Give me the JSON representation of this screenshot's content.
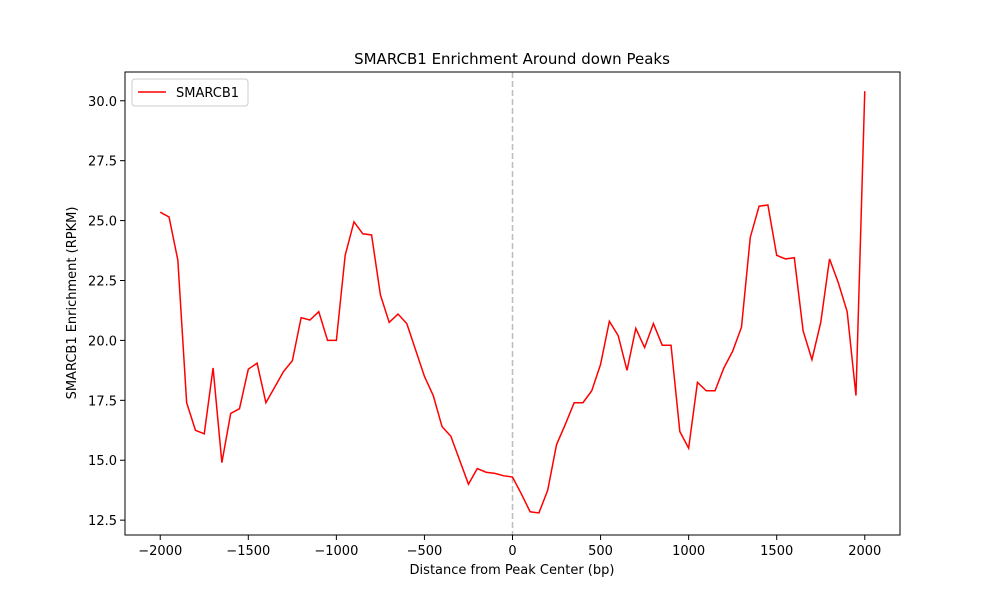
{
  "chart_data": {
    "type": "line",
    "title": "SMARCB1 Enrichment Around down Peaks",
    "x_label": "Distance from Peak Center (bp)",
    "y_label": "SMARCB1 Enrichment (RPKM)",
    "x": [
      -2000,
      -1950,
      -1900,
      -1850,
      -1800,
      -1750,
      -1700,
      -1650,
      -1600,
      -1550,
      -1500,
      -1450,
      -1400,
      -1350,
      -1300,
      -1250,
      -1200,
      -1150,
      -1100,
      -1050,
      -1000,
      -950,
      -900,
      -850,
      -800,
      -750,
      -700,
      -650,
      -600,
      -550,
      -500,
      -450,
      -400,
      -350,
      -300,
      -250,
      -200,
      -150,
      -100,
      -50,
      0,
      50,
      100,
      150,
      200,
      250,
      300,
      350,
      400,
      450,
      500,
      550,
      600,
      650,
      700,
      750,
      800,
      850,
      900,
      950,
      1000,
      1050,
      1100,
      1150,
      1200,
      1250,
      1300,
      1350,
      1400,
      1450,
      1500,
      1550,
      1600,
      1650,
      1700,
      1750,
      1800,
      1850,
      1900,
      1950,
      2000
    ],
    "series": [
      {
        "name": "SMARCB1",
        "color": "#ff0000",
        "values": [
          25.35,
          25.15,
          23.35,
          17.4,
          16.25,
          16.1,
          18.85,
          14.9,
          16.95,
          17.15,
          18.8,
          19.05,
          17.4,
          18.05,
          18.7,
          19.15,
          20.95,
          20.85,
          21.2,
          20.0,
          20.0,
          23.55,
          24.95,
          24.45,
          24.4,
          21.9,
          20.75,
          21.1,
          20.7,
          19.6,
          18.5,
          17.7,
          16.4,
          16.0,
          15.0,
          14.0,
          14.65,
          14.5,
          14.45,
          14.35,
          14.3,
          13.6,
          12.85,
          12.8,
          13.75,
          15.65,
          16.5,
          17.4,
          17.4,
          17.9,
          19.0,
          20.8,
          20.2,
          18.75,
          20.5,
          19.7,
          20.7,
          19.8,
          19.8,
          16.2,
          15.5,
          18.25,
          17.9,
          17.9,
          18.85,
          19.55,
          20.55,
          24.3,
          25.6,
          25.65,
          23.55,
          23.4,
          23.45,
          20.4,
          19.2,
          20.75,
          23.4,
          22.4,
          21.2,
          17.7,
          30.4
        ]
      }
    ],
    "xlim": [
      -2200,
      2200
    ],
    "ylim": [
      11.88,
      31.2
    ],
    "xticks": [
      {
        "value": -2000,
        "label": "−2000"
      },
      {
        "value": -1500,
        "label": "−1500"
      },
      {
        "value": -1000,
        "label": "−1000"
      },
      {
        "value": -500,
        "label": "−500"
      },
      0,
      500,
      1000,
      1500,
      2000
    ],
    "yticks": [
      12.5,
      {
        "value": 15,
        "label": "15.0"
      },
      17.5,
      {
        "value": 20,
        "label": "20.0"
      },
      22.5,
      {
        "value": 25,
        "label": "25.0"
      },
      27.5,
      {
        "value": 30,
        "label": "30.0"
      }
    ],
    "vline": 0,
    "vline_color": "#bbbbbb",
    "legend": "upper left"
  }
}
